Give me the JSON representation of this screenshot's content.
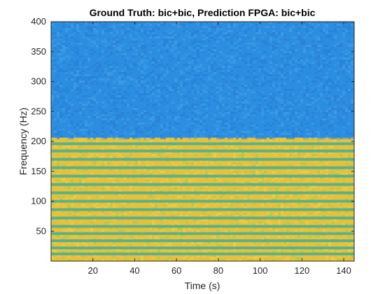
{
  "chart_data": {
    "type": "heatmap",
    "title": "Ground Truth: bic+bic, Prediction FPGA: bic+bic",
    "xlabel": "Time (s)",
    "ylabel": "Frequency (Hz)",
    "xlim": [
      0,
      145
    ],
    "ylim": [
      0,
      400
    ],
    "x_ticks": [
      20,
      40,
      60,
      80,
      100,
      120,
      140
    ],
    "y_ticks": [
      50,
      100,
      150,
      200,
      250,
      300,
      350,
      400
    ],
    "colormap": "parula",
    "grid": false,
    "regions": [
      {
        "y_from": 206,
        "y_to": 400,
        "level": "low",
        "color": "#2b8ee0"
      },
      {
        "y_from": 0,
        "y_to": 206,
        "level": "high",
        "color": "#e6c13a"
      }
    ],
    "harmonic_bands_hz": [
      12,
      22,
      34,
      46,
      58,
      72,
      86,
      100,
      114,
      128,
      142,
      156,
      170,
      184,
      196
    ]
  }
}
